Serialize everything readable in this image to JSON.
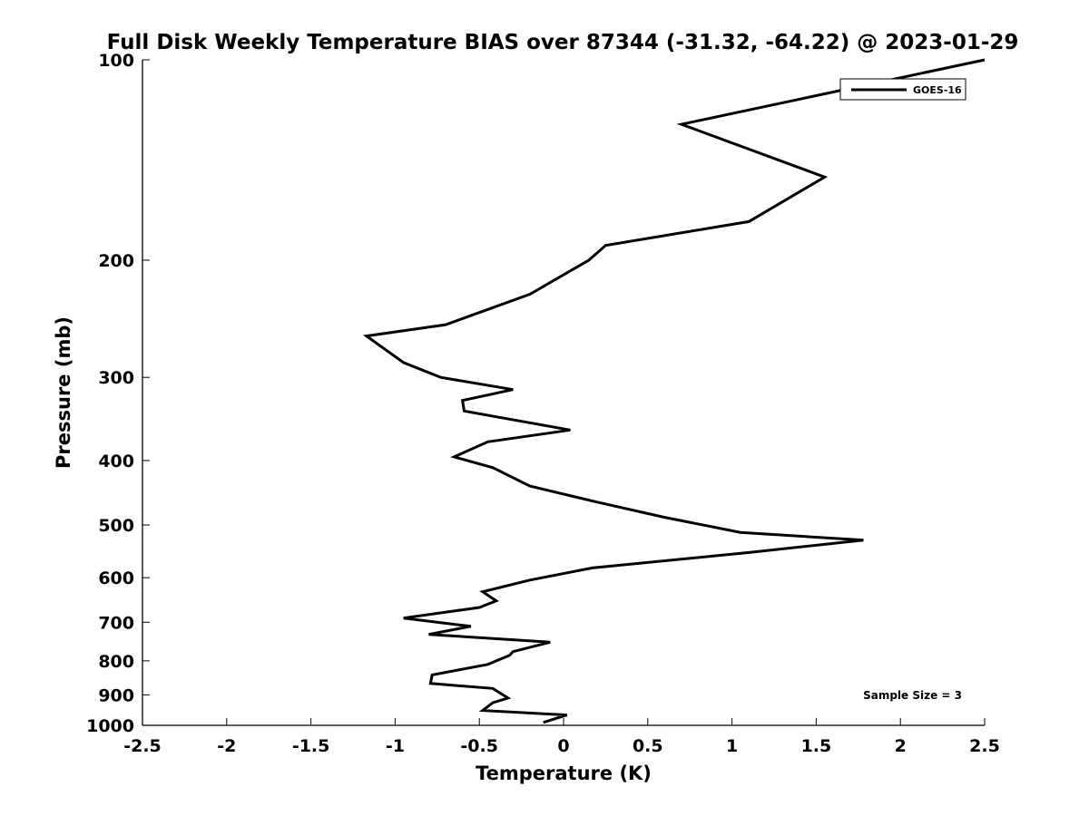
{
  "chart_data": {
    "type": "line",
    "title": "Full Disk Weekly Temperature BIAS over 87344 (-31.32, -64.22) @ 2023-01-29",
    "xlabel": "Temperature (K)",
    "ylabel": "Pressure (mb)",
    "xlim": [
      -2.5,
      2.5
    ],
    "ylim": [
      1000,
      100
    ],
    "y_scale": "log",
    "y_reversed": true,
    "xticks": [
      -2.5,
      -2,
      -1.5,
      -1,
      -0.5,
      0,
      0.5,
      1,
      1.5,
      2,
      2.5
    ],
    "xtick_labels": [
      "-2.5",
      "-2",
      "-1.5",
      "-1",
      "-0.5",
      "0",
      "0.5",
      "1",
      "1.5",
      "2",
      "2.5"
    ],
    "yticks": [
      100,
      200,
      300,
      400,
      500,
      600,
      700,
      800,
      900,
      1000
    ],
    "ytick_labels": [
      "100",
      "200",
      "300",
      "400",
      "500",
      "600",
      "700",
      "800",
      "900",
      "1000"
    ],
    "grid": false,
    "legend_position": "top-right",
    "annotation": "Sample Size = 3",
    "series": [
      {
        "name": "GOES-16",
        "color": "#000000",
        "points": [
          [
            2.5,
            100
          ],
          [
            0.7,
            125
          ],
          [
            1.55,
            150
          ],
          [
            1.1,
            175
          ],
          [
            0.25,
            190
          ],
          [
            0.15,
            200
          ],
          [
            -0.2,
            225
          ],
          [
            -0.7,
            250
          ],
          [
            -1.17,
            260
          ],
          [
            -0.95,
            285
          ],
          [
            -0.73,
            300
          ],
          [
            -0.3,
            313
          ],
          [
            -0.6,
            325
          ],
          [
            -0.59,
            337
          ],
          [
            0.04,
            360
          ],
          [
            -0.45,
            375
          ],
          [
            -0.65,
            395
          ],
          [
            -0.42,
            410
          ],
          [
            -0.2,
            437
          ],
          [
            0.2,
            462
          ],
          [
            0.6,
            487
          ],
          [
            1.05,
            513
          ],
          [
            1.78,
            527
          ],
          [
            1.1,
            550
          ],
          [
            0.17,
            580
          ],
          [
            -0.2,
            605
          ],
          [
            -0.48,
            630
          ],
          [
            -0.4,
            650
          ],
          [
            -0.5,
            665
          ],
          [
            -0.95,
            690
          ],
          [
            -0.55,
            710
          ],
          [
            -0.8,
            730
          ],
          [
            -0.08,
            750
          ],
          [
            -0.3,
            775
          ],
          [
            -0.32,
            785
          ],
          [
            -0.45,
            810
          ],
          [
            -0.78,
            840
          ],
          [
            -0.79,
            865
          ],
          [
            -0.42,
            880
          ],
          [
            -0.33,
            910
          ],
          [
            -0.42,
            925
          ],
          [
            -0.48,
            950
          ],
          [
            0.02,
            965
          ],
          [
            -0.12,
            990
          ]
        ]
      }
    ]
  }
}
